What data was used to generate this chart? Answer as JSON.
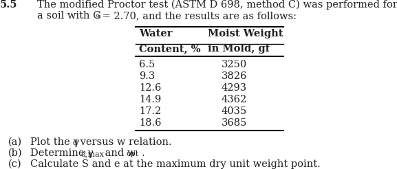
{
  "problem_number": "5.5",
  "main_text_line1": "The modified Proctor test (ASTM D 698, method C) was performed for",
  "main_text_line2a": "a soil with G",
  "main_text_gs": "s",
  "main_text_line2b": " = 2.70, and the results are as follows:",
  "col1_hdr1": "Water",
  "col1_hdr2": "Content, %",
  "col2_hdr1": "Moist Weight",
  "col2_hdr2": "in Mold, gf",
  "water_content": [
    "6.5",
    "9.3",
    "12.6",
    "14.9",
    "17.2",
    "18.6"
  ],
  "moist_weight": [
    "3250",
    "3826",
    "4293",
    "4362",
    "4035",
    "3685"
  ],
  "bg_color": "#ffffff",
  "text_color": "#231f20",
  "fs": 10.5,
  "fs_sub": 8.0,
  "fs_bold": 10.5
}
